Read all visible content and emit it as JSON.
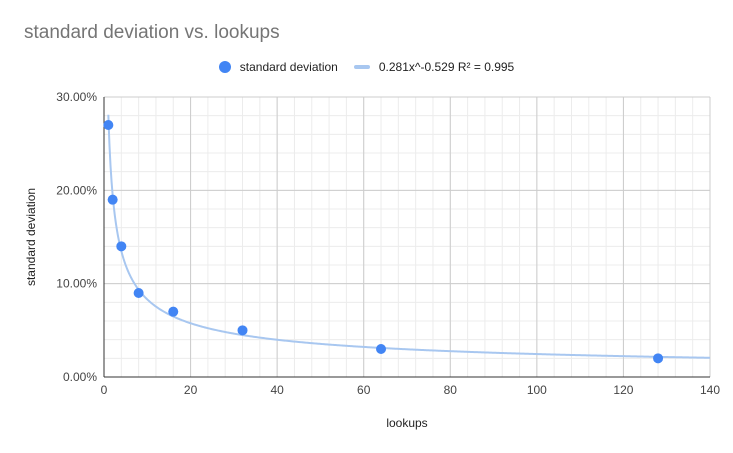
{
  "chart_data": {
    "type": "scatter",
    "title": "standard deviation vs. lookups",
    "xlabel": "lookups",
    "ylabel": "standard deviation",
    "xlim": [
      0,
      140
    ],
    "ylim": [
      0,
      0.3
    ],
    "x_ticks": [
      "0",
      "20",
      "40",
      "60",
      "80",
      "100",
      "120",
      "140"
    ],
    "y_ticks": [
      "0.00%",
      "10.00%",
      "20.00%",
      "30.00%"
    ],
    "grid": true,
    "legend_position": "top",
    "series": [
      {
        "name": "standard deviation",
        "color": "#4285f4",
        "points": [
          {
            "x": 1,
            "y": 0.27
          },
          {
            "x": 2,
            "y": 0.19
          },
          {
            "x": 4,
            "y": 0.14
          },
          {
            "x": 8,
            "y": 0.09
          },
          {
            "x": 16,
            "y": 0.07
          },
          {
            "x": 32,
            "y": 0.05
          },
          {
            "x": 64,
            "y": 0.03
          },
          {
            "x": 128,
            "y": 0.02
          }
        ]
      }
    ],
    "trendline": {
      "label": "0.281x^-0.529 R² = 0.995",
      "type": "power",
      "coefficient": 0.281,
      "exponent": -0.529,
      "color": "#a8c7f0"
    }
  }
}
